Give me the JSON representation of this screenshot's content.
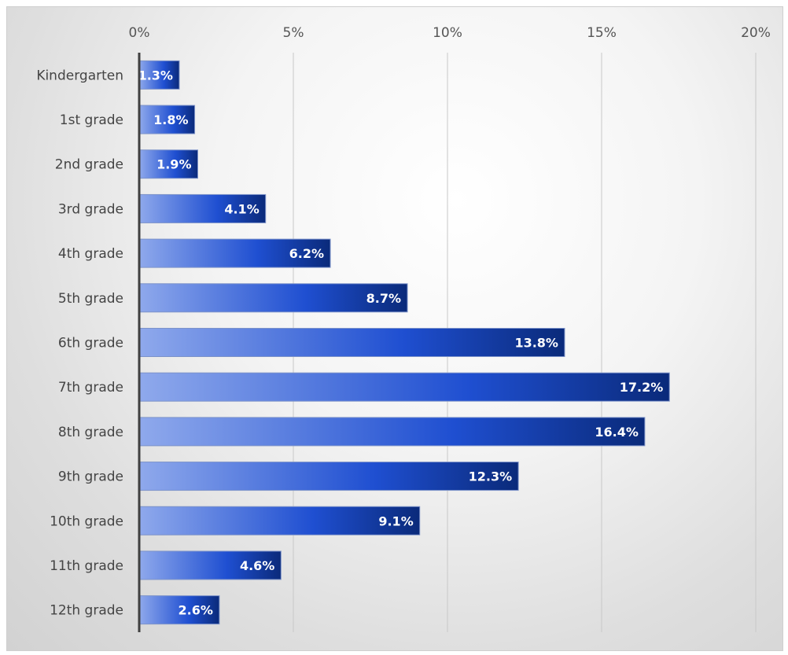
{
  "chart_data": {
    "type": "bar",
    "orientation": "horizontal",
    "categories": [
      "Kindergarten",
      "1st grade",
      "2nd grade",
      "3rd grade",
      "4th grade",
      "5th grade",
      "6th grade",
      "7th grade",
      "8th grade",
      "9th grade",
      "10th grade",
      "11th grade",
      "12th grade"
    ],
    "values": [
      1.3,
      1.8,
      1.9,
      4.1,
      6.2,
      8.7,
      13.8,
      17.2,
      16.4,
      12.3,
      9.1,
      4.6,
      2.6
    ],
    "data_labels": [
      "1.3%",
      "1.8%",
      "1.9%",
      "4.1%",
      "6.2%",
      "8.7%",
      "13.8%",
      "17.2%",
      "16.4%",
      "12.3%",
      "9.1%",
      "4.6%",
      "2.6%"
    ],
    "xlim": [
      0,
      20
    ],
    "x_ticks": [
      0,
      5,
      10,
      15,
      20
    ],
    "x_tick_labels": [
      "0%",
      "5%",
      "10%",
      "15%",
      "20%"
    ],
    "x_axis_position": "top",
    "grid": true,
    "legend": "none",
    "title": "",
    "xlabel": "",
    "ylabel": "",
    "colors": {
      "bar_start": "#8fa9ec",
      "bar_mid": "#1f4fd1",
      "bar_end": "#0a2a7a",
      "grid": "#c8c8c8",
      "axis": "#404040"
    }
  }
}
